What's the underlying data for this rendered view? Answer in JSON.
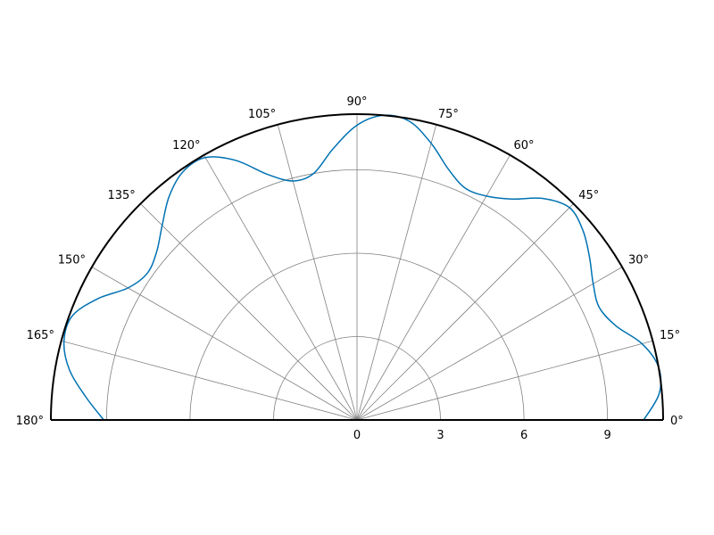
{
  "chart_data": {
    "type": "line",
    "coordinate_system": "polar",
    "theta_range_deg": [
      0,
      180
    ],
    "rlim": [
      0,
      11
    ],
    "grid": true,
    "theta_ticks": [
      {
        "value": 0,
        "label": "0°"
      },
      {
        "value": 15,
        "label": "15°"
      },
      {
        "value": 30,
        "label": "30°"
      },
      {
        "value": 45,
        "label": "45°"
      },
      {
        "value": 60,
        "label": "60°"
      },
      {
        "value": 75,
        "label": "75°"
      },
      {
        "value": 90,
        "label": "90°"
      },
      {
        "value": 105,
        "label": "105°"
      },
      {
        "value": 120,
        "label": "120°"
      },
      {
        "value": 135,
        "label": "135°"
      },
      {
        "value": 150,
        "label": "150°"
      },
      {
        "value": 165,
        "label": "165°"
      },
      {
        "value": 180,
        "label": "180°"
      }
    ],
    "r_ticks": [
      {
        "value": 0,
        "label": "0"
      },
      {
        "value": 3,
        "label": "3"
      },
      {
        "value": 6,
        "label": "6"
      },
      {
        "value": 9,
        "label": "9"
      }
    ],
    "series": [
      {
        "color": "#0072b2",
        "theta": [
          0,
          5,
          10,
          15,
          20,
          25,
          30,
          35,
          40,
          45,
          50,
          55,
          60,
          65,
          70,
          75,
          80,
          85,
          90,
          95,
          100,
          105,
          110,
          115,
          120,
          125,
          130,
          135,
          140,
          145,
          150,
          155,
          160,
          165,
          170,
          175,
          180
        ],
        "r": [
          10.3,
          10.9,
          11.0,
          10.6,
          9.9,
          9.6,
          9.8,
          10.2,
          10.6,
          10.8,
          10.4,
          9.7,
          9.3,
          9.2,
          9.6,
          10.3,
          10.9,
          11.0,
          10.6,
          9.8,
          9.0,
          8.9,
          9.4,
          10.3,
          10.9,
          10.9,
          10.5,
          9.9,
          9.4,
          9.2,
          9.5,
          10.3,
          10.9,
          10.9,
          10.5,
          9.8,
          9.1
        ]
      }
    ]
  }
}
